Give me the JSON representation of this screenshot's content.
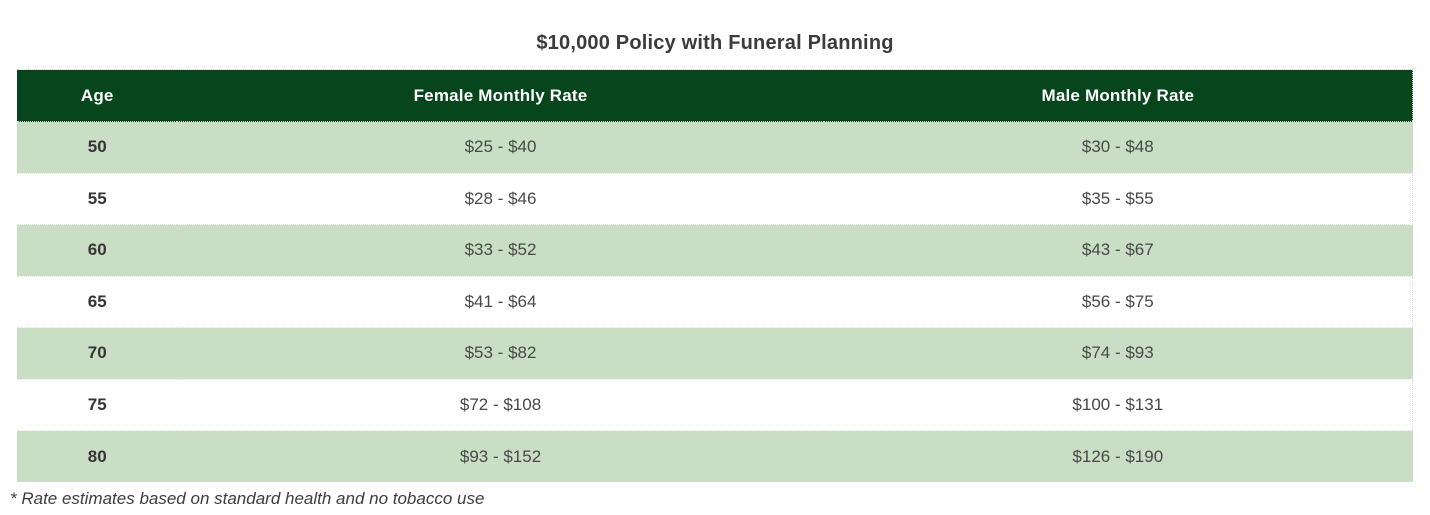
{
  "chart_data": {
    "type": "table",
    "title": "$10,000 Policy with Funeral Planning",
    "columns": [
      "Age",
      "Female Monthly Rate",
      "Male Monthly Rate"
    ],
    "rows": [
      [
        "50",
        "$25 - $40",
        "$30 - $48"
      ],
      [
        "55",
        "$28 - $46",
        "$35 - $55"
      ],
      [
        "60",
        "$33 - $52",
        "$43 - $67"
      ],
      [
        "65",
        "$41 - $64",
        "$56 - $75"
      ],
      [
        "70",
        "$53 - $82",
        "$74 - $93"
      ],
      [
        "75",
        "$72 - $108",
        "$100 - $131"
      ],
      [
        "80",
        "$93 - $152",
        "$126 - $190"
      ]
    ],
    "footnote": "* Rate estimates based on standard health and no tobacco use",
    "layout": {
      "header_position": "top",
      "row_striping": "odd-rows-green",
      "text_alignment": "center"
    }
  },
  "colors": {
    "header_bg": "#07451d",
    "header_text": "#ffffff",
    "row_alt_bg": "#c9dec5",
    "row_bg": "#ffffff",
    "title_text": "#3b3b3b",
    "cell_text": "#484848"
  }
}
